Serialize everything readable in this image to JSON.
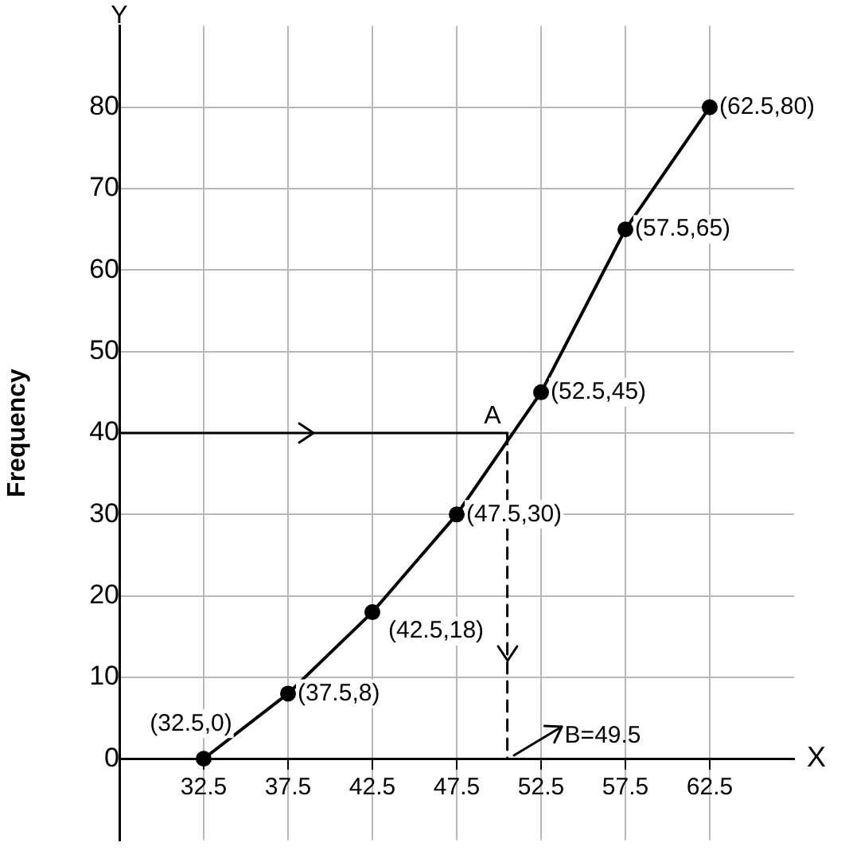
{
  "chart_data": {
    "type": "line",
    "xlabel": "X",
    "ylabel": "Frequency",
    "x": [
      32.5,
      37.5,
      42.5,
      47.5,
      52.5,
      57.5,
      62.5
    ],
    "series": [
      {
        "color": "#000000",
        "values": [
          0,
          8,
          18,
          30,
          45,
          65,
          80
        ],
        "value_labels": [
          "(32.5,0)",
          "(37.5,8)",
          "(42.5,18)",
          "(47.5,30)",
          "(52.5,45)",
          "(57.5,65)",
          "(62.5,80)"
        ]
      }
    ],
    "xlim": [
      27.5,
      67.5
    ],
    "ylim": [
      -10,
      90
    ],
    "xticks": [
      32.5,
      37.5,
      42.5,
      47.5,
      52.5,
      57.5,
      62.5
    ],
    "yticks": [
      0,
      10,
      20,
      30,
      40,
      50,
      60,
      70,
      80
    ],
    "grid": true,
    "marker": "circle",
    "line_style": "solid",
    "ref_lines": [
      {
        "axis": "y",
        "value": 40,
        "color": "#000000",
        "line_style": "solid"
      },
      {
        "axis": "x",
        "value": 50.5,
        "color": "#000000",
        "line_style": "dashed"
      }
    ],
    "annotations": [
      "Y",
      {
        "text": "A",
        "x": 50.5,
        "y": 40
      },
      {
        "text": "B=49.5",
        "x": 50.5,
        "y": 0
      }
    ]
  }
}
